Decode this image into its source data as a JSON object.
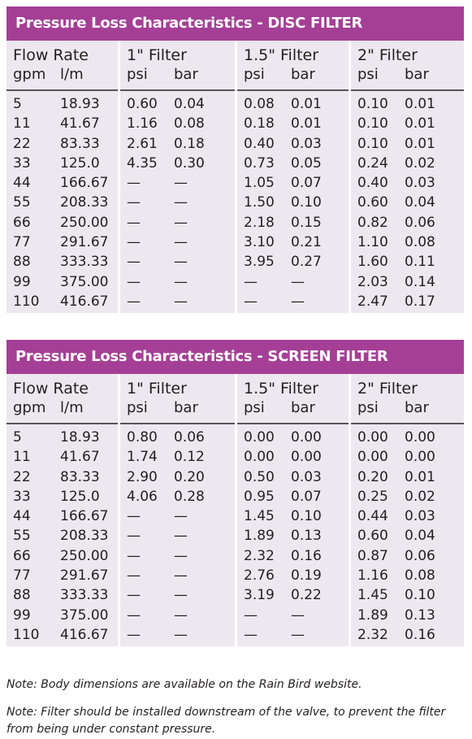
{
  "tables": [
    {
      "title": "Pressure Loss Characteristics - DISC FILTER",
      "headers": {
        "flow": {
          "title": "Flow Rate",
          "u1": "gpm",
          "u2": "l/m"
        },
        "f1": {
          "title": "1\" Filter",
          "u1": "psi",
          "u2": "bar"
        },
        "f15": {
          "title": "1.5\" Filter",
          "u1": "psi",
          "u2": "bar"
        },
        "f2": {
          "title": "2\" Filter",
          "u1": "psi",
          "u2": "bar"
        }
      },
      "rows": [
        [
          "5",
          "18.93",
          "0.60",
          "0.04",
          "0.08",
          "0.01",
          "0.10",
          "0.01"
        ],
        [
          "11",
          "41.67",
          "1.16",
          "0.08",
          "0.18",
          "0.01",
          "0.10",
          "0.01"
        ],
        [
          "22",
          "83.33",
          "2.61",
          "0.18",
          "0.40",
          "0.03",
          "0.10",
          "0.01"
        ],
        [
          "33",
          "125.0",
          "4.35",
          "0.30",
          "0.73",
          "0.05",
          "0.24",
          "0.02"
        ],
        [
          "44",
          "166.67",
          "—",
          "—",
          "1.05",
          "0.07",
          "0.40",
          "0.03"
        ],
        [
          "55",
          "208.33",
          "—",
          "—",
          "1.50",
          "0.10",
          "0.60",
          "0.04"
        ],
        [
          "66",
          "250.00",
          "—",
          "—",
          "2.18",
          "0.15",
          "0.82",
          "0.06"
        ],
        [
          "77",
          "291.67",
          "—",
          "—",
          "3.10",
          "0.21",
          "1.10",
          "0.08"
        ],
        [
          "88",
          "333.33",
          "—",
          "—",
          "3.95",
          "0.27",
          "1.60",
          "0.11"
        ],
        [
          "99",
          "375.00",
          "—",
          "—",
          "—",
          "—",
          "2.03",
          "0.14"
        ],
        [
          "110",
          "416.67",
          "—",
          "—",
          "—",
          "—",
          "2.47",
          "0.17"
        ]
      ]
    },
    {
      "title": "Pressure Loss Characteristics - SCREEN FILTER",
      "headers": {
        "flow": {
          "title": "Flow Rate",
          "u1": "gpm",
          "u2": "l/m"
        },
        "f1": {
          "title": "1\" Filter",
          "u1": "psi",
          "u2": "bar"
        },
        "f15": {
          "title": "1.5\" Filter",
          "u1": "psi",
          "u2": "bar"
        },
        "f2": {
          "title": "2\" Filter",
          "u1": "psi",
          "u2": "bar"
        }
      },
      "rows": [
        [
          "5",
          "18.93",
          "0.80",
          "0.06",
          "0.00",
          "0.00",
          "0.00",
          "0.00"
        ],
        [
          "11",
          "41.67",
          "1.74",
          "0.12",
          "0.00",
          "0.00",
          "0.00",
          "0.00"
        ],
        [
          "22",
          "83.33",
          "2.90",
          "0.20",
          "0.50",
          "0.03",
          "0.20",
          "0.01"
        ],
        [
          "33",
          "125.0",
          "4.06",
          "0.28",
          "0.95",
          "0.07",
          "0.25",
          "0.02"
        ],
        [
          "44",
          "166.67",
          "—",
          "—",
          "1.45",
          "0.10",
          "0.44",
          "0.03"
        ],
        [
          "55",
          "208.33",
          "—",
          "—",
          "1.89",
          "0.13",
          "0.60",
          "0.04"
        ],
        [
          "66",
          "250.00",
          "—",
          "—",
          "2.32",
          "0.16",
          "0.87",
          "0.06"
        ],
        [
          "77",
          "291.67",
          "—",
          "—",
          "2.76",
          "0.19",
          "1.16",
          "0.08"
        ],
        [
          "88",
          "333.33",
          "—",
          "—",
          "3.19",
          "0.22",
          "1.45",
          "0.10"
        ],
        [
          "99",
          "375.00",
          "—",
          "—",
          "—",
          "—",
          "1.89",
          "0.13"
        ],
        [
          "110",
          "416.67",
          "—",
          "—",
          "—",
          "—",
          "2.32",
          "0.16"
        ]
      ]
    }
  ],
  "notes": [
    "Note: Body dimensions are available on the Rain Bird website.",
    "Note: Filter should be installed downstream of the valve, to prevent the filter from being under constant pressure."
  ],
  "colors": {
    "title_bar": "#a53f96",
    "column_fill": "#ede8ef"
  }
}
